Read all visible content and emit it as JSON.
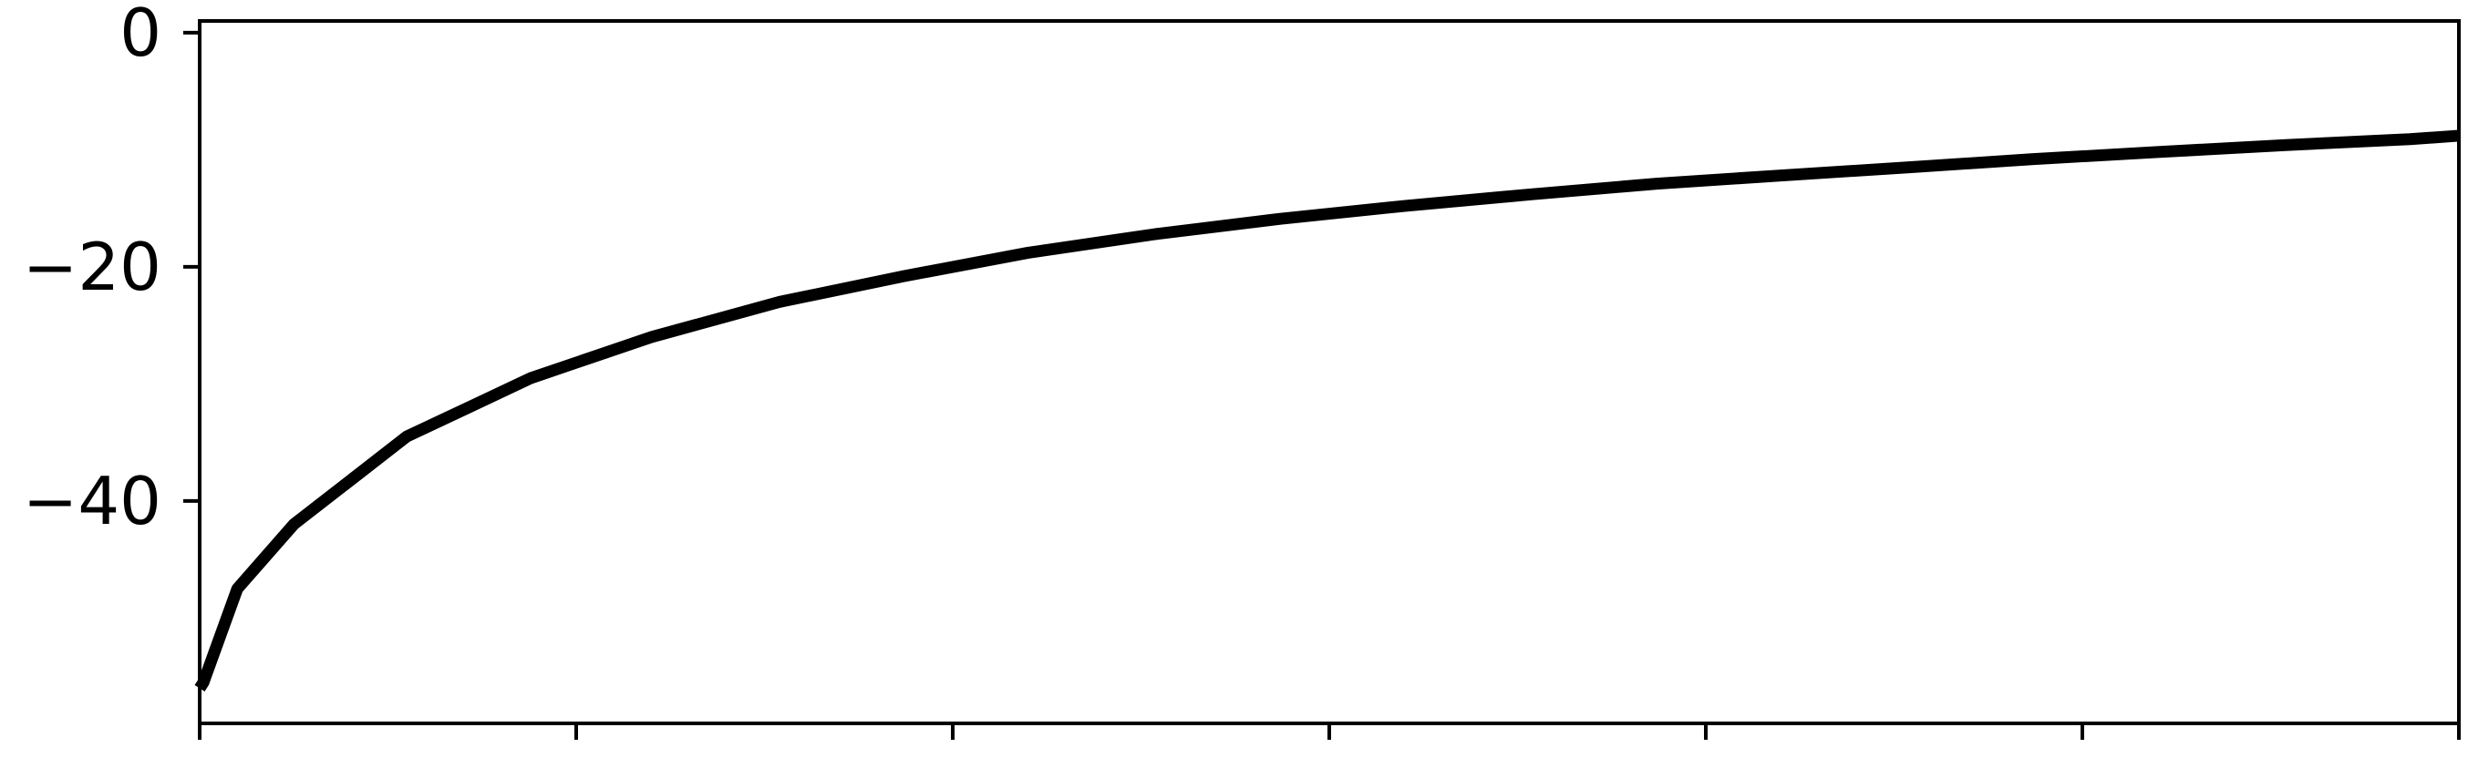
{
  "chart_data": {
    "type": "line",
    "title": "",
    "xlabel": "",
    "ylabel": "",
    "xlim": [
      0,
      6
    ],
    "ylim": [
      -59,
      1
    ],
    "y_ticks": [
      0,
      -20,
      -40
    ],
    "y_tick_labels": [
      "0",
      "−20",
      "−40"
    ],
    "x_ticks": [
      0,
      1,
      2,
      3,
      4,
      5,
      6
    ],
    "x_tick_labels": [
      "",
      "",
      "",
      "",
      "",
      "",
      ""
    ],
    "grid": false,
    "legend": "none",
    "line_color": "#000000",
    "series": [
      {
        "x": [
          0.0,
          0.01,
          0.1,
          0.25,
          0.55,
          0.88,
          1.2,
          1.54,
          1.87,
          2.2,
          2.54,
          2.87,
          3.2,
          3.54,
          3.87,
          4.2,
          4.54,
          4.87,
          5.2,
          5.54,
          5.87,
          6.0
        ],
        "y": [
          -56.0,
          -55.5,
          -47.5,
          -42.0,
          -34.5,
          -29.5,
          -26.0,
          -23.0,
          -20.8,
          -18.8,
          -17.2,
          -15.9,
          -14.8,
          -13.8,
          -12.9,
          -12.2,
          -11.5,
          -10.8,
          -10.2,
          -9.6,
          -9.1,
          -8.8
        ]
      }
    ]
  }
}
